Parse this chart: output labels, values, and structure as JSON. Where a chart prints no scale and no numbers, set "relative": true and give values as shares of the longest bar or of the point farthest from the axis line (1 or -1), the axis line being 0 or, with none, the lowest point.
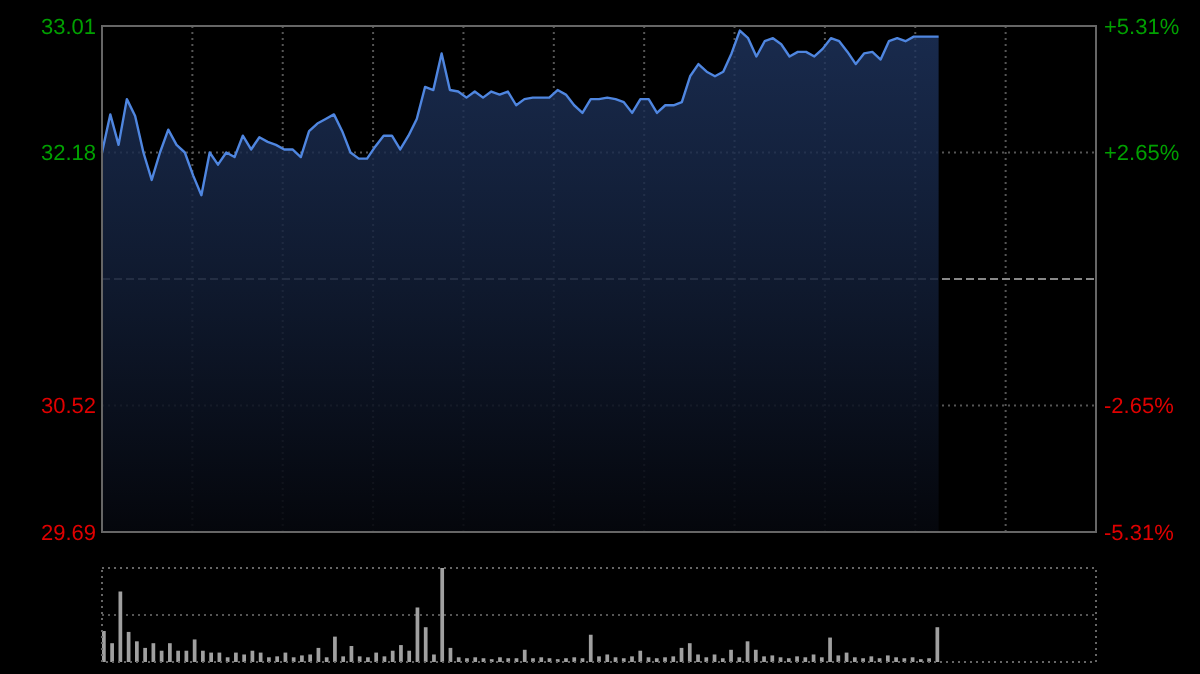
{
  "chart_data": [
    {
      "type": "area",
      "categories": [
        null,
        null,
        null,
        null,
        null,
        null,
        null,
        null,
        null,
        null,
        null,
        null,
        null,
        null,
        null,
        null,
        null,
        null,
        null,
        null,
        null,
        null,
        null,
        null,
        null,
        null,
        null,
        null,
        null,
        null,
        null,
        null,
        null,
        null,
        null,
        null,
        null,
        null,
        null,
        null,
        null,
        null,
        null,
        null,
        null,
        null,
        null,
        null,
        null,
        null,
        null,
        null,
        null,
        null,
        null,
        null,
        null,
        null,
        null,
        null,
        null,
        null,
        null,
        null,
        null,
        null,
        null,
        null,
        null,
        null,
        null,
        null,
        null,
        null,
        null,
        null,
        null,
        null,
        null,
        null,
        null,
        null,
        null,
        null,
        null,
        null,
        null,
        null,
        null,
        null,
        null,
        null,
        null,
        null,
        null,
        null,
        null,
        null,
        null,
        null,
        null,
        null,
        null,
        null,
        null,
        null,
        null,
        null,
        null,
        null,
        null,
        null,
        null,
        null,
        null,
        null,
        null,
        null,
        null,
        null,
        null
      ],
      "series": [
        {
          "color": "#4f86e0",
          "values": [
            32.18,
            32.43,
            32.23,
            32.53,
            32.42,
            32.18,
            32.0,
            32.18,
            32.33,
            32.23,
            32.18,
            32.03,
            31.9,
            32.18,
            32.1,
            32.18,
            32.15,
            32.29,
            32.2,
            32.28,
            32.25,
            32.23,
            32.2,
            32.2,
            32.15,
            32.32,
            32.37,
            32.4,
            32.43,
            32.32,
            32.18,
            32.14,
            32.14,
            32.22,
            32.29,
            32.29,
            32.2,
            32.29,
            32.4,
            32.61,
            32.59,
            32.83,
            32.59,
            32.58,
            32.54,
            32.58,
            32.54,
            32.58,
            32.56,
            32.58,
            32.49,
            32.53,
            32.54,
            32.54,
            32.54,
            32.59,
            32.56,
            32.49,
            32.44,
            32.53,
            32.53,
            32.54,
            32.53,
            32.51,
            32.44,
            32.53,
            32.53,
            32.44,
            32.49,
            32.49,
            32.51,
            32.68,
            32.76,
            32.71,
            32.68,
            32.71,
            32.83,
            32.98,
            32.93,
            32.81,
            32.91,
            32.93,
            32.89,
            32.81,
            32.84,
            32.84,
            32.81,
            32.86,
            32.93,
            32.91,
            32.84,
            32.76,
            32.83,
            32.84,
            32.79,
            32.91,
            32.93,
            32.91,
            32.94,
            32.94,
            32.94,
            32.94,
            null,
            null,
            null,
            null,
            null,
            null,
            null,
            null,
            null,
            null,
            null,
            null,
            null,
            null,
            null,
            null,
            null,
            null,
            null
          ]
        }
      ],
      "ylim": [
        29.69,
        33.01
      ],
      "yticks": [
        29.69,
        30.52,
        32.18,
        33.01
      ],
      "y2lim": [
        -5.31,
        5.31
      ],
      "y2ticks": [
        {
          "value": 5.31,
          "label": "+5.31%"
        },
        {
          "value": 2.65,
          "label": "+2.65%"
        },
        {
          "value": -2.65,
          "label": "-2.65%"
        },
        {
          "value": -5.31,
          "label": "-5.31%"
        }
      ],
      "ref_lines": [
        {
          "axis": "y",
          "value": 31.35,
          "line_style": "dashed"
        }
      ],
      "grid": true,
      "tick_labels": "y"
    },
    {
      "type": "bar",
      "relative": true,
      "tick_labels": false,
      "grid": true,
      "ref_lines": [
        {
          "axis": "y",
          "value": 0.5,
          "line_style": "dotted",
          "color": "#555555"
        }
      ],
      "categories": [
        null,
        null,
        null,
        null,
        null,
        null,
        null,
        null,
        null,
        null,
        null,
        null,
        null,
        null,
        null,
        null,
        null,
        null,
        null,
        null,
        null,
        null,
        null,
        null,
        null,
        null,
        null,
        null,
        null,
        null,
        null,
        null,
        null,
        null,
        null,
        null,
        null,
        null,
        null,
        null,
        null,
        null,
        null,
        null,
        null,
        null,
        null,
        null,
        null,
        null,
        null,
        null,
        null,
        null,
        null,
        null,
        null,
        null,
        null,
        null,
        null,
        null,
        null,
        null,
        null,
        null,
        null,
        null,
        null,
        null,
        null,
        null,
        null,
        null,
        null,
        null,
        null,
        null,
        null,
        null,
        null,
        null,
        null,
        null,
        null,
        null,
        null,
        null,
        null,
        null,
        null,
        null,
        null,
        null,
        null,
        null,
        null,
        null,
        null,
        null,
        null,
        null,
        null,
        null,
        null,
        null,
        null,
        null,
        null,
        null,
        null,
        null,
        null,
        null,
        null,
        null,
        null,
        null,
        null,
        null,
        null
      ],
      "series": [
        {
          "color": "#a0a0a0",
          "values": [
            0.33,
            0.2,
            0.75,
            0.32,
            0.22,
            0.15,
            0.2,
            0.12,
            0.2,
            0.12,
            0.12,
            0.24,
            0.12,
            0.1,
            0.1,
            0.05,
            0.1,
            0.08,
            0.12,
            0.1,
            0.05,
            0.06,
            0.1,
            0.05,
            0.07,
            0.08,
            0.15,
            0.05,
            0.27,
            0.06,
            0.17,
            0.06,
            0.05,
            0.1,
            0.06,
            0.12,
            0.18,
            0.12,
            0.58,
            0.37,
            0.08,
            1,
            0.15,
            0.05,
            0.04,
            0.05,
            0.04,
            0.03,
            0.05,
            0.04,
            0.04,
            0.13,
            0.04,
            0.05,
            0.04,
            0.03,
            0.04,
            0.05,
            0.04,
            0.29,
            0.06,
            0.08,
            0.05,
            0.04,
            0.06,
            0.12,
            0.05,
            0.04,
            0.05,
            0.06,
            0.15,
            0.2,
            0.08,
            0.05,
            0.08,
            0.04,
            0.13,
            0.05,
            0.22,
            0.13,
            0.06,
            0.07,
            0.05,
            0.04,
            0.06,
            0.05,
            0.08,
            0.05,
            0.26,
            0.07,
            0.1,
            0.05,
            0.04,
            0.06,
            0.04,
            0.07,
            0.05,
            0.04,
            0.05,
            0.03,
            0.04,
            0.37,
            null,
            null,
            null,
            null,
            null,
            null,
            null,
            null,
            null,
            null,
            null,
            null,
            null,
            null,
            null,
            null,
            null,
            null,
            null
          ]
        }
      ]
    }
  ]
}
